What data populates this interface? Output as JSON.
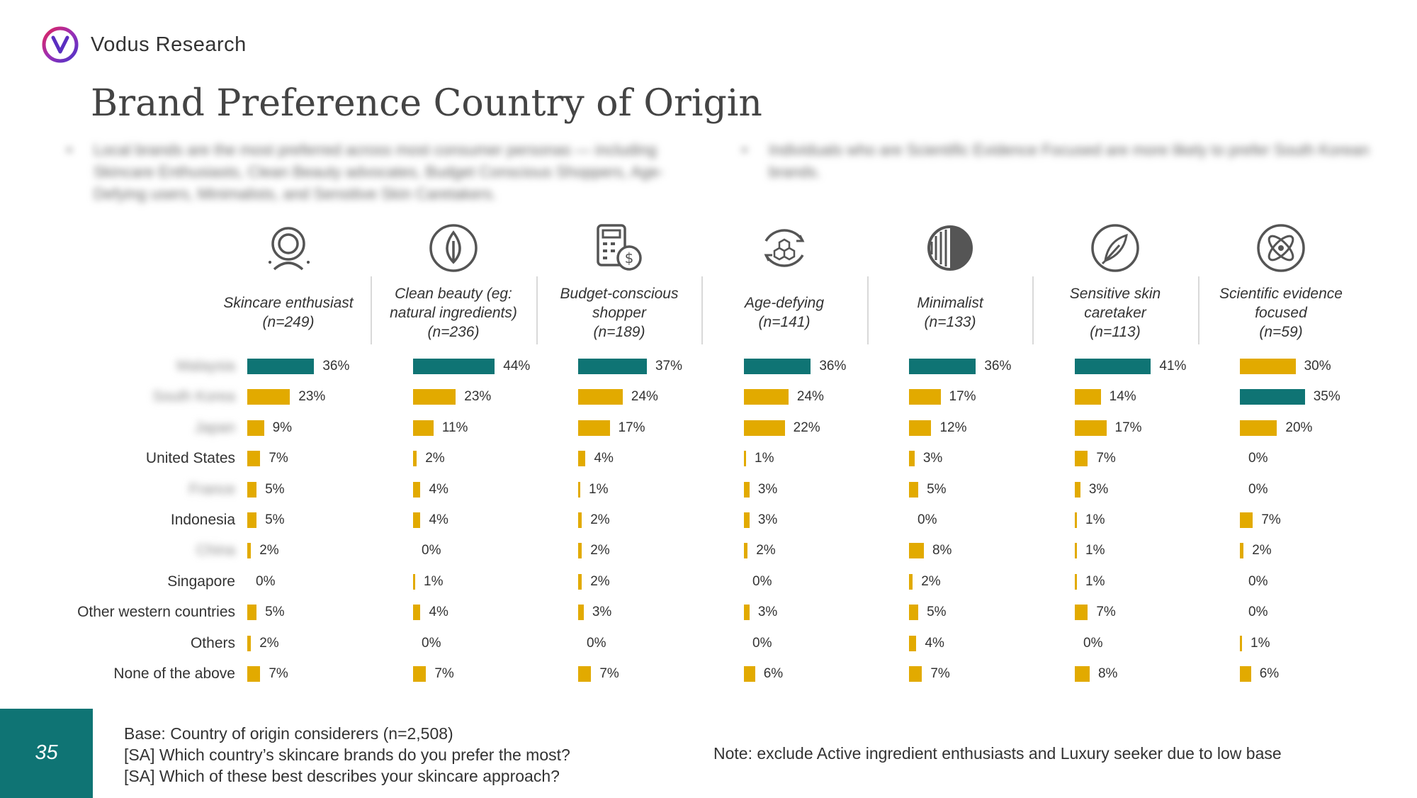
{
  "brand": {
    "name": "Vodus Research",
    "logo_icon": "vodus-v-logo-icon"
  },
  "title": "Brand Preference Country of Origin",
  "bullets": [
    "Local brands are the most preferred across most consumer personas — including Skincare Enthusiasts, Clean Beauty advocates, Budget Conscious Shoppers, Age-Defying users, Minimalists, and Sensitive Skin Caretakers.",
    "Individuals who are Scientific Evidence Focused are more likely to prefer South Korean brands."
  ],
  "colors": {
    "primary": "#0f7474",
    "secondary": "#e2aa00"
  },
  "chart_data": {
    "type": "bar",
    "orientation": "horizontal",
    "categories": [
      "Malaysia",
      "South Korea",
      "Japan",
      "United States",
      "France",
      "Indonesia",
      "China",
      "Singapore",
      "Other western countries",
      "Others",
      "None of the above"
    ],
    "category_visible": [
      false,
      false,
      false,
      true,
      false,
      true,
      false,
      true,
      true,
      true,
      true
    ],
    "value_format": "percent",
    "series": [
      {
        "name": "Skincare enthusiast",
        "n_label": "(n=249)",
        "icon": "skincare-face-icon",
        "values": [
          36,
          23,
          9,
          7,
          5,
          5,
          2,
          0,
          5,
          2,
          7
        ],
        "highlight_index": 0
      },
      {
        "name": "Clean beauty (eg: natural ingredients)",
        "n_label": "(n=236)",
        "icon": "leaf-icon",
        "values": [
          44,
          23,
          11,
          2,
          4,
          4,
          0,
          1,
          4,
          0,
          7
        ],
        "highlight_index": 0
      },
      {
        "name": "Budget-conscious shopper",
        "n_label": "(n=189)",
        "icon": "calculator-dollar-icon",
        "values": [
          37,
          24,
          17,
          4,
          1,
          2,
          2,
          2,
          3,
          0,
          7
        ],
        "highlight_index": 0
      },
      {
        "name": "Age-defying",
        "n_label": "(n=141)",
        "icon": "hexagon-cycle-icon",
        "values": [
          36,
          24,
          22,
          1,
          3,
          3,
          2,
          0,
          3,
          0,
          6
        ],
        "highlight_index": 0
      },
      {
        "name": "Minimalist",
        "n_label": "(n=133)",
        "icon": "half-circle-lines-icon",
        "values": [
          36,
          17,
          12,
          3,
          5,
          0,
          8,
          2,
          5,
          4,
          7
        ],
        "highlight_index": 0
      },
      {
        "name": "Sensitive skin caretaker",
        "n_label": "(n=113)",
        "icon": "feather-icon",
        "values": [
          41,
          14,
          17,
          7,
          3,
          1,
          1,
          1,
          7,
          0,
          8
        ],
        "highlight_index": 0
      },
      {
        "name": "Scientific evidence focused",
        "n_label": "(n=59)",
        "icon": "atom-icon",
        "values": [
          30,
          35,
          20,
          0,
          0,
          7,
          2,
          0,
          0,
          1,
          6
        ],
        "highlight_index": 1
      }
    ]
  },
  "footer": {
    "page_number": "35",
    "base_lines": [
      "Base: Country of origin considerers (n=2,508)",
      "[SA] Which country’s skincare brands do you prefer the most?",
      "[SA] Which of these best describes your skincare approach?"
    ],
    "note": "Note: exclude Active ingredient enthusiasts and Luxury seeker due to low base"
  }
}
